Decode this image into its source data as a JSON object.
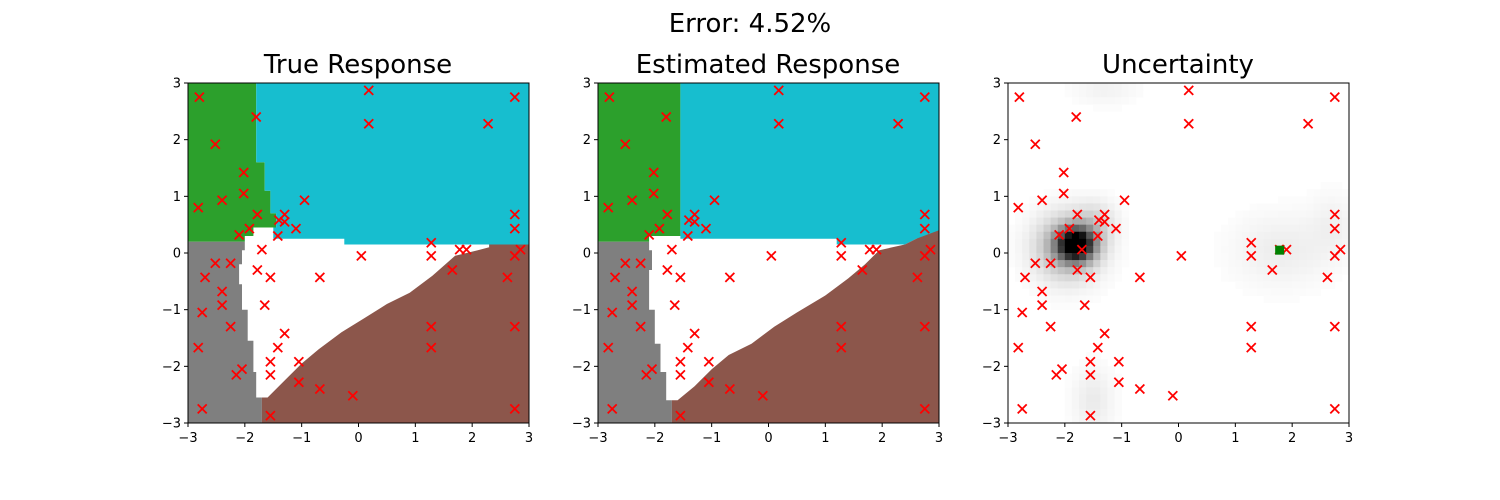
{
  "figure": {
    "suptitle": "Error: 4.52%"
  },
  "colors": {
    "green": "#2ca02c",
    "cyan": "#17becf",
    "blue": "#1f77b4",
    "gray": "#7f7f7f",
    "brown": "#8c564b",
    "marker": "#ff0000",
    "highlight": "#008000"
  },
  "chart_data": [
    {
      "type": "heatmap",
      "title": "True Response",
      "xlim": [
        -3,
        3
      ],
      "ylim": [
        -3,
        3
      ],
      "xticks": [
        "−3",
        "−2",
        "−1",
        "0",
        "1",
        "2",
        "3"
      ],
      "yticks": [
        "−3",
        "−2",
        "−1",
        "0",
        "1",
        "2",
        "3"
      ],
      "regions": [
        {
          "class": "green",
          "color": "#2ca02c",
          "polygon": [
            [
              -3,
              3
            ],
            [
              -1.8,
              3
            ],
            [
              -1.8,
              1.6
            ],
            [
              -1.65,
              1.6
            ],
            [
              -1.65,
              1.1
            ],
            [
              -1.55,
              1.1
            ],
            [
              -1.55,
              0.7
            ],
            [
              -1.45,
              0.7
            ],
            [
              -1.45,
              0.45
            ],
            [
              -1.85,
              0.45
            ],
            [
              -1.85,
              0.3
            ],
            [
              -2.0,
              0.3
            ],
            [
              -2.0,
              0.2
            ],
            [
              -3,
              0.2
            ]
          ]
        },
        {
          "class": "cyan",
          "color": "#17becf",
          "polygon": [
            [
              -1.8,
              3
            ],
            [
              3,
              3
            ],
            [
              3,
              0.1
            ],
            [
              2.3,
              0.1
            ],
            [
              2.3,
              0.15
            ],
            [
              -0.25,
              0.15
            ],
            [
              -0.25,
              0.25
            ],
            [
              -1.5,
              0.25
            ],
            [
              -1.5,
              0.45
            ],
            [
              -1.45,
              0.45
            ],
            [
              -1.45,
              0.7
            ],
            [
              -1.55,
              0.7
            ],
            [
              -1.55,
              1.1
            ],
            [
              -1.65,
              1.1
            ],
            [
              -1.65,
              1.6
            ],
            [
              -1.8,
              1.6
            ]
          ]
        },
        {
          "class": "gray",
          "color": "#7f7f7f",
          "polygon": [
            [
              -3,
              0.2
            ],
            [
              -2.0,
              0.2
            ],
            [
              -2.0,
              0.05
            ],
            [
              -2.05,
              0.05
            ],
            [
              -2.05,
              -0.2
            ],
            [
              -2.1,
              -0.2
            ],
            [
              -2.1,
              -0.55
            ],
            [
              -2.05,
              -0.55
            ],
            [
              -2.05,
              -1.0
            ],
            [
              -1.95,
              -1.0
            ],
            [
              -1.95,
              -1.55
            ],
            [
              -1.85,
              -1.55
            ],
            [
              -1.85,
              -2.1
            ],
            [
              -1.8,
              -2.1
            ],
            [
              -1.8,
              -2.55
            ],
            [
              -1.7,
              -2.55
            ],
            [
              -1.7,
              -3
            ],
            [
              -3,
              -3
            ]
          ]
        },
        {
          "class": "brown",
          "color": "#8c564b",
          "polygon": [
            [
              -1.7,
              -3
            ],
            [
              3,
              -3
            ],
            [
              3,
              0.15
            ],
            [
              2.3,
              0.15
            ],
            [
              2.3,
              0.1
            ],
            [
              2.1,
              0.05
            ],
            [
              1.7,
              -0.05
            ],
            [
              1.3,
              -0.4
            ],
            [
              0.9,
              -0.7
            ],
            [
              0.5,
              -0.9
            ],
            [
              0.1,
              -1.15
            ],
            [
              -0.3,
              -1.4
            ],
            [
              -0.7,
              -1.7
            ],
            [
              -1.0,
              -1.95
            ],
            [
              -1.3,
              -2.25
            ],
            [
              -1.6,
              -2.55
            ],
            [
              -1.7,
              -2.55
            ]
          ]
        }
      ]
    },
    {
      "type": "heatmap",
      "title": "Estimated Response",
      "xlim": [
        -3,
        3
      ],
      "ylim": [
        -3,
        3
      ],
      "xticks": [
        "−3",
        "−2",
        "−1",
        "0",
        "1",
        "2",
        "3"
      ],
      "yticks": [
        "−3",
        "−2",
        "−1",
        "0",
        "1",
        "2",
        "3"
      ],
      "regions": [
        {
          "class": "green",
          "color": "#2ca02c",
          "polygon": [
            [
              -3,
              3
            ],
            [
              -1.55,
              3
            ],
            [
              -1.55,
              0.3
            ],
            [
              -2.1,
              0.3
            ],
            [
              -2.1,
              0.2
            ],
            [
              -3,
              0.2
            ]
          ]
        },
        {
          "class": "cyan",
          "color": "#17becf",
          "polygon": [
            [
              -1.55,
              3
            ],
            [
              3,
              3
            ],
            [
              3,
              0.25
            ],
            [
              2.6,
              0.25
            ],
            [
              2.4,
              0.15
            ],
            [
              1.2,
              0.15
            ],
            [
              1.2,
              0.25
            ],
            [
              -1.55,
              0.25
            ]
          ]
        },
        {
          "class": "gray",
          "color": "#7f7f7f",
          "polygon": [
            [
              -3,
              0.2
            ],
            [
              -2.1,
              0.2
            ],
            [
              -2.1,
              0.05
            ],
            [
              -2.05,
              0.05
            ],
            [
              -2.05,
              -0.3
            ],
            [
              -2.1,
              -0.3
            ],
            [
              -2.1,
              -1.0
            ],
            [
              -2.0,
              -1.0
            ],
            [
              -2.0,
              -1.6
            ],
            [
              -1.9,
              -1.6
            ],
            [
              -1.9,
              -2.1
            ],
            [
              -1.8,
              -2.1
            ],
            [
              -1.8,
              -2.6
            ],
            [
              -1.7,
              -2.6
            ],
            [
              -1.7,
              -3
            ],
            [
              -3,
              -3
            ]
          ]
        },
        {
          "class": "brown",
          "color": "#8c564b",
          "polygon": [
            [
              -1.7,
              -3
            ],
            [
              3,
              -3
            ],
            [
              3,
              0.4
            ],
            [
              2.6,
              0.25
            ],
            [
              2.4,
              0.15
            ],
            [
              1.95,
              0.05
            ],
            [
              1.7,
              -0.2
            ],
            [
              1.4,
              -0.45
            ],
            [
              1.0,
              -0.75
            ],
            [
              0.5,
              -1.05
            ],
            [
              0.1,
              -1.3
            ],
            [
              -0.3,
              -1.6
            ],
            [
              -0.7,
              -1.8
            ],
            [
              -1.0,
              -2.05
            ],
            [
              -1.3,
              -2.35
            ],
            [
              -1.6,
              -2.6
            ],
            [
              -1.7,
              -2.6
            ]
          ]
        }
      ]
    },
    {
      "type": "heatmap",
      "title": "Uncertainty",
      "xlim": [
        -3,
        3
      ],
      "ylim": [
        -3,
        3
      ],
      "xticks": [
        "−3",
        "−2",
        "−1",
        "0",
        "1",
        "2",
        "3"
      ],
      "yticks": [
        "−3",
        "−2",
        "−1",
        "0",
        "1",
        "2",
        "3"
      ],
      "blobs": [
        {
          "x": -1.8,
          "y": 0.15,
          "sx": 0.22,
          "sy": 0.2,
          "amp": 1.0
        },
        {
          "x": -1.95,
          "y": 0.1,
          "sx": 0.4,
          "sy": 0.4,
          "amp": 0.35
        },
        {
          "x": -1.45,
          "y": 0.55,
          "sx": 0.25,
          "sy": 0.25,
          "amp": 0.12
        },
        {
          "x": -1.5,
          "y": -2.6,
          "sx": 0.25,
          "sy": 0.4,
          "amp": 0.08
        },
        {
          "x": 1.8,
          "y": 0.05,
          "sx": 0.6,
          "sy": 0.45,
          "amp": 0.07
        },
        {
          "x": -1.3,
          "y": 2.9,
          "sx": 0.4,
          "sy": 0.2,
          "amp": 0.05
        },
        {
          "x": 2.75,
          "y": 0.5,
          "sx": 0.3,
          "sy": 0.4,
          "amp": 0.05
        }
      ],
      "highlight": {
        "x": 1.78,
        "y": 0.05
      }
    }
  ],
  "samples": [
    [
      -2.8,
      2.75
    ],
    [
      0.18,
      2.87
    ],
    [
      2.75,
      2.75
    ],
    [
      -1.8,
      2.4
    ],
    [
      0.18,
      2.28
    ],
    [
      2.28,
      2.28
    ],
    [
      -2.52,
      1.92
    ],
    [
      -2.02,
      1.42
    ],
    [
      -2.02,
      1.05
    ],
    [
      -2.82,
      0.8
    ],
    [
      -2.4,
      0.93
    ],
    [
      -0.95,
      0.93
    ],
    [
      -1.78,
      0.68
    ],
    [
      -1.3,
      0.68
    ],
    [
      -1.4,
      0.58
    ],
    [
      -1.3,
      0.55
    ],
    [
      -1.92,
      0.43
    ],
    [
      -1.1,
      0.43
    ],
    [
      -2.1,
      0.32
    ],
    [
      -1.42,
      0.3
    ],
    [
      2.75,
      0.68
    ],
    [
      2.75,
      0.43
    ],
    [
      1.28,
      0.18
    ],
    [
      1.78,
      0.06
    ],
    [
      1.9,
      0.06
    ],
    [
      2.85,
      0.06
    ],
    [
      -1.7,
      0.06
    ],
    [
      0.05,
      -0.05
    ],
    [
      1.28,
      -0.05
    ],
    [
      2.75,
      -0.05
    ],
    [
      -2.52,
      -0.18
    ],
    [
      -2.25,
      -0.18
    ],
    [
      -1.78,
      -0.3
    ],
    [
      1.65,
      -0.3
    ],
    [
      -2.7,
      -0.43
    ],
    [
      -1.55,
      -0.43
    ],
    [
      -0.68,
      -0.43
    ],
    [
      2.62,
      -0.43
    ],
    [
      -2.4,
      -0.68
    ],
    [
      -2.4,
      -0.92
    ],
    [
      -1.65,
      -0.92
    ],
    [
      -2.75,
      -1.05
    ],
    [
      -2.25,
      -1.3
    ],
    [
      -1.3,
      -1.42
    ],
    [
      1.28,
      -1.3
    ],
    [
      2.75,
      -1.3
    ],
    [
      -2.82,
      -1.67
    ],
    [
      -1.42,
      -1.67
    ],
    [
      1.28,
      -1.67
    ],
    [
      -1.55,
      -1.92
    ],
    [
      -1.05,
      -1.92
    ],
    [
      -2.05,
      -2.05
    ],
    [
      -2.15,
      -2.15
    ],
    [
      -1.55,
      -2.15
    ],
    [
      -1.05,
      -2.28
    ],
    [
      -0.68,
      -2.4
    ],
    [
      -0.1,
      -2.52
    ],
    [
      -2.75,
      -2.75
    ],
    [
      2.75,
      -2.75
    ],
    [
      -1.55,
      -2.87
    ]
  ]
}
